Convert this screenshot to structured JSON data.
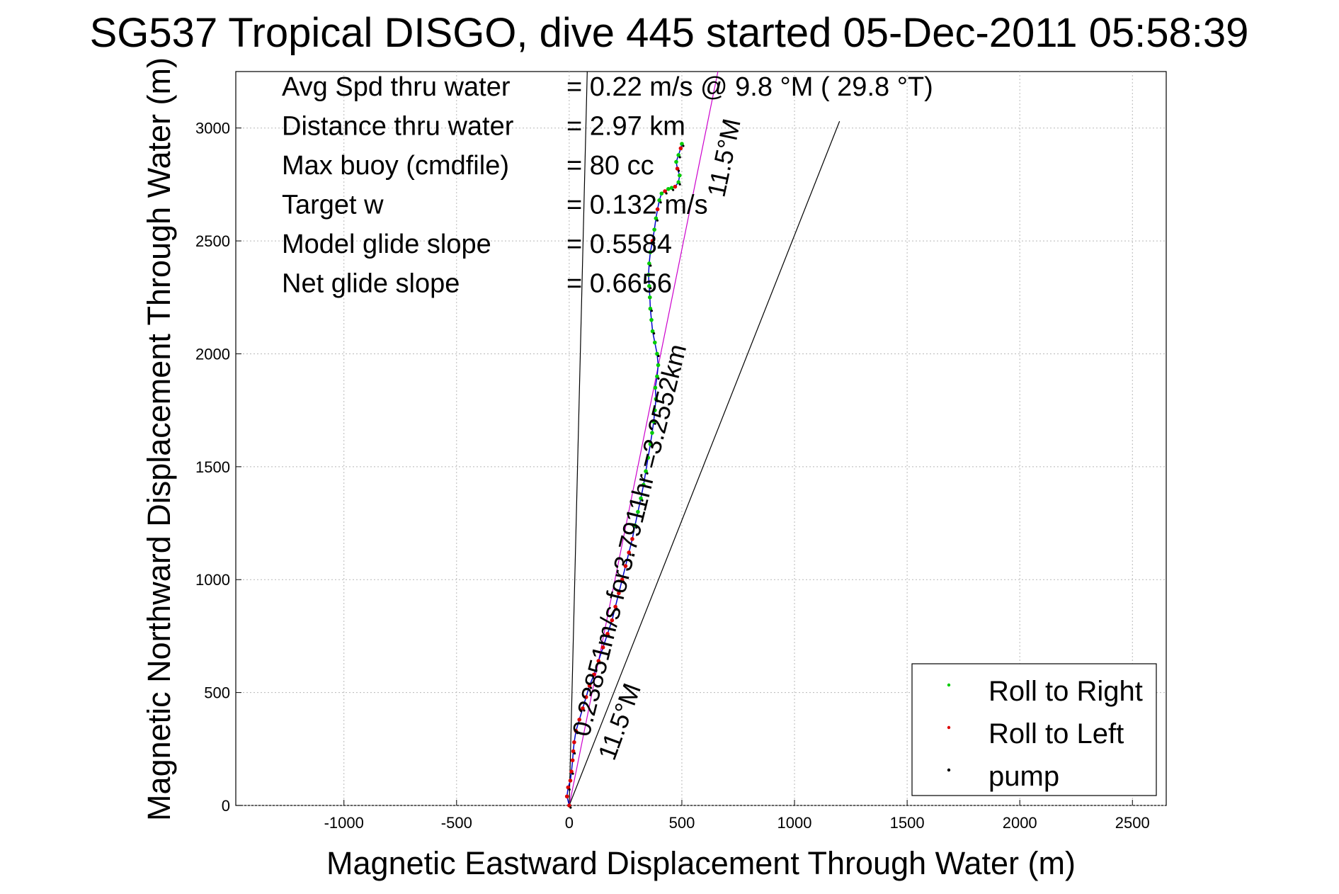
{
  "chart_data": {
    "type": "line",
    "title": "SG537 Tropical DISGO, dive 445 started 05-Dec-2011 05:58:39",
    "xlabel": "Magnetic Eastward Displacement Through Water (m)",
    "ylabel": "Magnetic Northward Displacement Through Water (m)",
    "xlim": [
      -1480,
      2650
    ],
    "ylim": [
      0,
      3250
    ],
    "xticks": [
      -1000,
      -500,
      0,
      500,
      1000,
      1500,
      2000,
      2500
    ],
    "yticks": [
      0,
      500,
      1000,
      1500,
      2000,
      2500,
      3000
    ],
    "grid": true,
    "legend_position": "bottom-right",
    "info_rows": [
      {
        "label": "Avg Spd thru water",
        "value": "=  0.22 m/s @   9.8 °M ( 29.8 °T)"
      },
      {
        "label": "Distance thru water",
        "value": "=  2.97 km"
      },
      {
        "label": "Max buoy (cmdfile)",
        "value": "= 80 cc"
      },
      {
        "label": "Target w",
        "value": "= 0.132 m/s"
      },
      {
        "label": "Model glide slope",
        "value": "= 0.5584"
      },
      {
        "label": "Net glide slope",
        "value": "= 0.6656"
      }
    ],
    "annotations": [
      {
        "text": "0.23851m/s for3.7911hr =3.2552km",
        "x": 0,
        "y": 300
      },
      {
        "text": "11.5°M",
        "x": 130,
        "y": 300
      },
      {
        "text": "11.5°M",
        "x": 600,
        "y": 2720
      }
    ],
    "reference_lines": [
      {
        "name": "heading line near 2°",
        "color": "#000000",
        "x": [
          0,
          80
        ],
        "y": [
          0,
          3250
        ]
      },
      {
        "name": "course line 11.5°M",
        "color": "#cc00cc",
        "x": [
          0,
          660
        ],
        "y": [
          0,
          3250
        ]
      },
      {
        "name": "heading line 21°",
        "color": "#000000",
        "x": [
          0,
          1200
        ],
        "y": [
          0,
          3030
        ]
      }
    ],
    "track": {
      "x": [
        0,
        -10,
        -5,
        5,
        10,
        15,
        18,
        22,
        30,
        45,
        60,
        75,
        90,
        110,
        130,
        150,
        170,
        190,
        205,
        220,
        235,
        250,
        265,
        280,
        292,
        305,
        318,
        330,
        340,
        350,
        360,
        368,
        375,
        380,
        385,
        382,
        390,
        395,
        390,
        380,
        370,
        365,
        360,
        358,
        355,
        352,
        355,
        360,
        370,
        378,
        385,
        392,
        400,
        410,
        425,
        440,
        455,
        470,
        485,
        490,
        480,
        475,
        485,
        495,
        500
      ],
      "y": [
        0,
        40,
        80,
        110,
        150,
        200,
        240,
        280,
        330,
        380,
        430,
        480,
        530,
        580,
        640,
        700,
        760,
        820,
        880,
        940,
        1000,
        1060,
        1120,
        1180,
        1240,
        1300,
        1360,
        1420,
        1480,
        1540,
        1600,
        1650,
        1700,
        1750,
        1800,
        1850,
        1900,
        1950,
        2000,
        2050,
        2100,
        2150,
        2200,
        2250,
        2300,
        2350,
        2400,
        2450,
        2500,
        2550,
        2600,
        2640,
        2680,
        2710,
        2720,
        2730,
        2735,
        2740,
        2760,
        2790,
        2820,
        2850,
        2880,
        2910,
        2930
      ]
    },
    "series": [
      {
        "name": "Roll to Right",
        "color": "#00cc00",
        "marker": "dot"
      },
      {
        "name": "Roll to Left",
        "color": "#dd0000",
        "marker": "dot"
      },
      {
        "name": "pump",
        "color": "#000000",
        "marker": "dot"
      }
    ],
    "track_color": "#0000cc"
  }
}
